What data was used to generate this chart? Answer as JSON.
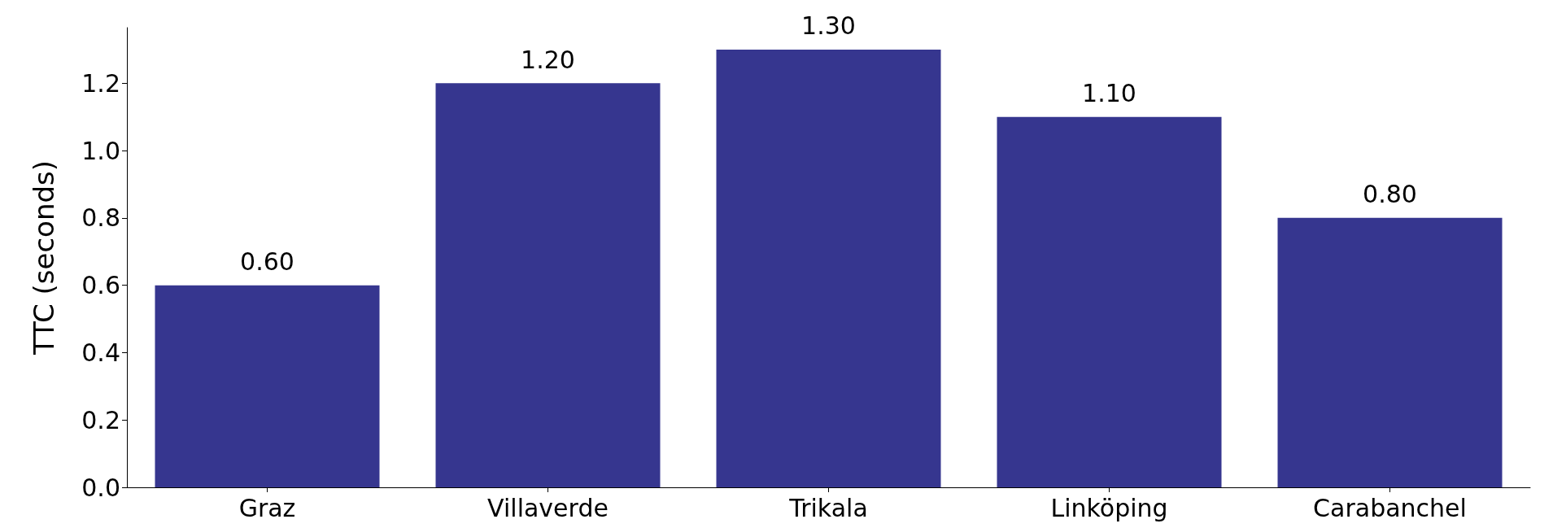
{
  "chart_data": {
    "type": "bar",
    "ylabel": "TTC (seconds)",
    "categories": [
      "Graz",
      "Villaverde",
      "Trikala",
      "Linköping",
      "Carabanchel"
    ],
    "values": [
      0.6,
      1.2,
      1.3,
      1.1,
      0.8
    ],
    "value_labels": [
      "0.60",
      "1.20",
      "1.30",
      "1.10",
      "0.80"
    ],
    "color": "#36368f",
    "ylim": [
      0,
      1.365
    ],
    "yticks": [
      {
        "value": 0,
        "label": "0.0"
      },
      {
        "value": 0.2,
        "label": "0.2"
      },
      {
        "value": 0.4,
        "label": "0.4"
      },
      {
        "value": 0.6,
        "label": "0.6"
      },
      {
        "value": 0.8,
        "label": "0.8"
      },
      {
        "value": 1.0,
        "label": "1.0"
      },
      {
        "value": 1.2,
        "label": "1.2"
      }
    ],
    "grid": false
  }
}
